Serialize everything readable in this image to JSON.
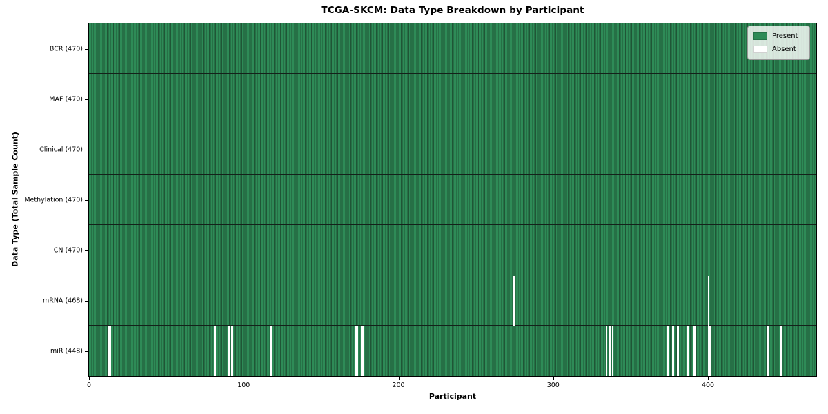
{
  "chart_data": {
    "type": "heatmap",
    "title": "TCGA-SKCM: Data Type Breakdown by Participant",
    "xlabel": "Participant",
    "ylabel": "Data Type (Total Sample Count)",
    "n_participants": 470,
    "xlim": [
      0,
      470
    ],
    "x_ticks": [
      0,
      100,
      200,
      300,
      400
    ],
    "grid": false,
    "legend_position": "upper right",
    "colors": {
      "present": "#2e8b57",
      "absent": "#ffffff",
      "bar_edge": "#1f5636",
      "row_divider": "#14211a",
      "spine": "#000000",
      "background": "#ffffff"
    },
    "legend": [
      {
        "label": "Present",
        "color": "#2e8b57"
      },
      {
        "label": "Absent",
        "color": "#ffffff"
      }
    ],
    "rows": [
      {
        "name": "BCR",
        "label": "BCR (470)",
        "total_samples": 470,
        "absent_participants": []
      },
      {
        "name": "MAF",
        "label": "MAF (470)",
        "total_samples": 470,
        "absent_participants": []
      },
      {
        "name": "Clinical",
        "label": "Clinical (470)",
        "total_samples": 470,
        "absent_participants": []
      },
      {
        "name": "Methylation",
        "label": "Methylation (470)",
        "total_samples": 470,
        "absent_participants": []
      },
      {
        "name": "CN",
        "label": "CN (470)",
        "total_samples": 470,
        "absent_participants": []
      },
      {
        "name": "mRNA",
        "label": "mRNA (468)",
        "total_samples": 468,
        "absent_participants": [
          274,
          400
        ]
      },
      {
        "name": "miR",
        "label": "miR (448)",
        "total_samples": 448,
        "absent_participants": [
          12,
          13,
          81,
          90,
          92,
          117,
          172,
          173,
          176,
          177,
          334,
          336,
          338,
          374,
          377,
          380,
          387,
          391,
          400,
          401,
          438,
          447
        ]
      }
    ]
  }
}
